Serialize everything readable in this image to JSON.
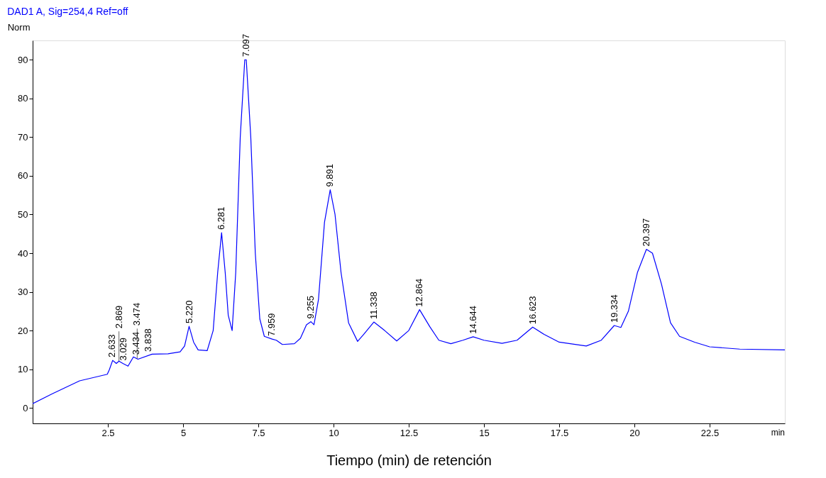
{
  "chart_data": {
    "type": "line",
    "title": "DAD1 A, Sig=254,4 Ref=off",
    "xlabel": "Tiempo (min) de retención",
    "ylabel": "Norm",
    "x": [
      0,
      0.64,
      1.56,
      2.48,
      2.55,
      2.66,
      2.78,
      2.87,
      3.0,
      3.17,
      3.35,
      3.5,
      3.97,
      4.5,
      4.9,
      5.05,
      5.2,
      5.35,
      5.5,
      5.8,
      6.0,
      6.15,
      6.28,
      6.4,
      6.5,
      6.63,
      6.75,
      6.9,
      7.05,
      7.1,
      7.25,
      7.4,
      7.55,
      7.7,
      7.96,
      8.1,
      8.3,
      8.7,
      8.9,
      9.1,
      9.25,
      9.35,
      9.5,
      9.7,
      9.89,
      10.05,
      10.25,
      10.5,
      10.8,
      11.0,
      11.34,
      11.7,
      12.1,
      12.5,
      12.86,
      13.2,
      13.5,
      13.9,
      14.3,
      14.64,
      15.0,
      15.6,
      16.1,
      16.62,
      17.0,
      17.5,
      18.4,
      18.9,
      19.33,
      19.55,
      19.8,
      20.1,
      20.4,
      20.6,
      20.9,
      21.2,
      21.5,
      22.0,
      22.5,
      23.5,
      25.0
    ],
    "series": [
      {
        "color": "#0000ff",
        "values": [
          1.1,
          3.6,
          7.0,
          8.7,
          9.9,
          12.3,
          11.5,
          12.1,
          11.5,
          10.8,
          13.2,
          12.6,
          13.9,
          14.0,
          14.5,
          16,
          21.1,
          17,
          15,
          14.8,
          20,
          35,
          45.3,
          35,
          24,
          20,
          35,
          70,
          90,
          90,
          70,
          40,
          23,
          18.5,
          17.8,
          17.5,
          16.4,
          16.6,
          18,
          21.5,
          22.3,
          21.5,
          28,
          48,
          56.4,
          50,
          35,
          22,
          17.2,
          19,
          22.2,
          20,
          17.3,
          20,
          25.4,
          21,
          17.5,
          16.6,
          17.5,
          18.4,
          17.5,
          16.7,
          17.5,
          20.9,
          19,
          17,
          16,
          17.5,
          21.3,
          20.8,
          25,
          35,
          41,
          40,
          32,
          22,
          18.5,
          17,
          15.8,
          15.2,
          15.0
        ]
      }
    ],
    "xlim": [
      0,
      25
    ],
    "xticks": [
      2.5,
      5,
      7.5,
      10,
      12.5,
      15,
      17.5,
      20,
      22.5
    ],
    "ylim": [
      -4,
      95
    ],
    "yticks": [
      0,
      10,
      20,
      30,
      40,
      50,
      60,
      70,
      80,
      90
    ],
    "grid": false,
    "annotations": [
      {
        "text": "2.633",
        "x": 2.633,
        "y": 12.3
      },
      {
        "text": "2.869",
        "x": 2.869,
        "y": 12.1
      },
      {
        "text": "3.029",
        "x": 3.029,
        "y": 11.5
      },
      {
        "text": "3.434",
        "x": 3.434,
        "y": 13.0
      },
      {
        "text": "3.474",
        "x": 3.474,
        "y": 12.8
      },
      {
        "text": "3.838",
        "x": 3.838,
        "y": 13.8
      },
      {
        "text": "5.220",
        "x": 5.22,
        "y": 21.1
      },
      {
        "text": "6.281",
        "x": 6.281,
        "y": 45.3
      },
      {
        "text": "7.097",
        "x": 7.097,
        "y": 90
      },
      {
        "text": "7.959",
        "x": 7.959,
        "y": 17.8
      },
      {
        "text": "9.255",
        "x": 9.255,
        "y": 22.3
      },
      {
        "text": "9.891",
        "x": 9.891,
        "y": 56.4
      },
      {
        "text": "11.338",
        "x": 11.338,
        "y": 22.2
      },
      {
        "text": "12.864",
        "x": 12.864,
        "y": 25.4
      },
      {
        "text": "14.644",
        "x": 14.644,
        "y": 18.4
      },
      {
        "text": "16.623",
        "x": 16.623,
        "y": 20.9
      },
      {
        "text": "19.334",
        "x": 19.334,
        "y": 21.3
      },
      {
        "text": "20.397",
        "x": 20.397,
        "y": 41
      },
      "min"
    ]
  }
}
